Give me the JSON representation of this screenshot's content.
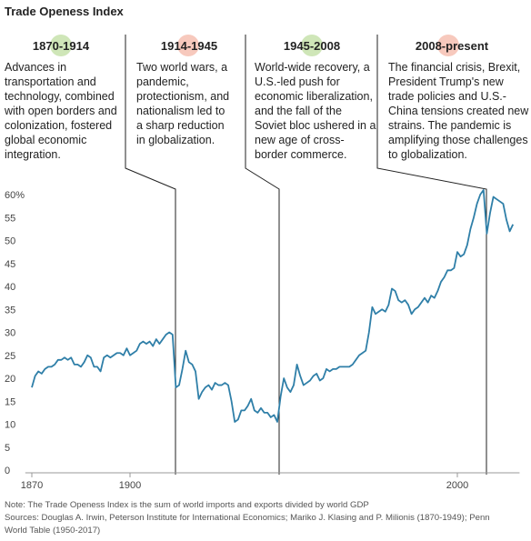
{
  "chart_data": {
    "type": "line",
    "title": "Trade Openess Index",
    "eras": [
      {
        "period": "1870-1914",
        "lines": [
          "Advances in",
          "transportation and",
          "technology, combined",
          "with open borders and",
          "colonization, fostered",
          "global economic",
          "integration."
        ]
      },
      {
        "period": "1914-1945",
        "lines": [
          "Two world wars, a",
          "pandemic,",
          "protectionism, and",
          "nationalism led to",
          "a sharp reduction",
          "in globalization."
        ]
      },
      {
        "period": "1945-2008",
        "lines": [
          "World-wide recovery, a",
          "U.S.-led push for",
          "economic liberalization,",
          "and the fall of the",
          "Soviet bloc ushered in a",
          "new age of cross-",
          "border commerce."
        ]
      },
      {
        "period": "2008-present",
        "lines": [
          "The financial crisis, Brexit,",
          "President Trump's new",
          "trade policies and U.S.-",
          "China tensions created new",
          "strains. The pandemic is",
          "amplifying those challenges",
          "to globalization."
        ]
      }
    ],
    "x": [
      1870,
      1871,
      1872,
      1873,
      1874,
      1875,
      1876,
      1877,
      1878,
      1879,
      1880,
      1881,
      1882,
      1883,
      1884,
      1885,
      1886,
      1887,
      1888,
      1889,
      1890,
      1891,
      1892,
      1893,
      1894,
      1895,
      1896,
      1897,
      1898,
      1899,
      1900,
      1901,
      1902,
      1903,
      1904,
      1905,
      1906,
      1907,
      1908,
      1909,
      1910,
      1911,
      1912,
      1913,
      1914,
      1915,
      1916,
      1917,
      1918,
      1919,
      1920,
      1921,
      1922,
      1923,
      1924,
      1925,
      1926,
      1927,
      1928,
      1929,
      1930,
      1931,
      1932,
      1933,
      1934,
      1935,
      1936,
      1937,
      1938,
      1939,
      1940,
      1941,
      1942,
      1943,
      1944,
      1945,
      1946,
      1947,
      1948,
      1949,
      1950,
      1951,
      1952,
      1953,
      1954,
      1955,
      1956,
      1957,
      1958,
      1959,
      1960,
      1961,
      1962,
      1963,
      1964,
      1965,
      1966,
      1967,
      1968,
      1969,
      1970,
      1971,
      1972,
      1973,
      1974,
      1975,
      1976,
      1977,
      1978,
      1979,
      1980,
      1981,
      1982,
      1983,
      1984,
      1985,
      1986,
      1987,
      1988,
      1989,
      1990,
      1991,
      1992,
      1993,
      1994,
      1995,
      1996,
      1997,
      1998,
      1999,
      2000,
      2001,
      2002,
      2003,
      2004,
      2005,
      2006,
      2007,
      2008,
      2009,
      2010,
      2011,
      2012,
      2013,
      2014,
      2015,
      2016,
      2017
    ],
    "values": [
      18,
      20.5,
      21.5,
      21,
      22,
      22.5,
      22.5,
      23,
      24,
      24,
      24.5,
      24,
      24.5,
      23,
      23,
      22.5,
      23.5,
      25,
      24.5,
      22.5,
      22.5,
      21.5,
      24.5,
      25,
      24.5,
      25,
      25.5,
      25.5,
      25,
      26.5,
      25,
      25.5,
      26,
      27.5,
      28,
      27.5,
      28,
      27,
      28.5,
      27.5,
      28.5,
      29.5,
      30,
      29.5,
      18,
      18.5,
      22,
      26,
      23.5,
      23,
      21.5,
      15.5,
      17,
      18,
      18.5,
      17.5,
      19,
      18.5,
      18.5,
      19,
      18.5,
      15,
      10.5,
      11,
      13,
      13,
      14,
      15.5,
      13,
      12.5,
      13.5,
      12.5,
      12.5,
      11.5,
      12,
      10.5,
      16,
      20,
      18,
      17,
      18.5,
      23,
      20.5,
      18.5,
      19,
      19.5,
      20.5,
      21,
      19.5,
      20,
      22,
      21.5,
      22,
      22,
      22.5,
      22.5,
      22.5,
      22.5,
      23,
      24,
      25,
      25.5,
      26,
      30,
      35.5,
      34,
      34.5,
      35,
      34.5,
      36,
      39.5,
      39,
      37,
      36.5,
      37,
      36,
      34,
      35,
      35.5,
      36.5,
      37.5,
      36.5,
      38,
      37.5,
      39,
      41,
      42,
      43.5,
      43.5,
      44,
      47.5,
      46.5,
      47,
      49,
      52.5,
      55,
      58,
      60,
      61,
      51.5,
      56,
      59.5,
      59,
      58.5,
      58,
      54.5,
      52,
      53.5
    ],
    "color": "#2f7fa8",
    "xlim": [
      1868,
      2019
    ],
    "xticks": [
      1870,
      1900,
      2000
    ],
    "ylim": [
      0,
      60
    ],
    "yticks": [
      0,
      5,
      10,
      15,
      20,
      25,
      30,
      35,
      40,
      45,
      50,
      55,
      {
        "value": 60,
        "label": "60%"
      }
    ],
    "notes": [
      "Note: The Trade Openess Index is the sum of world imports and exports divided by world GDP",
      "Sources: Douglas A. Irwin, Peterson Institute for International Economics; Mariko J. Klasing and P. Milionis (1870-1949); Penn",
      "World Table (1950-2017)"
    ]
  }
}
